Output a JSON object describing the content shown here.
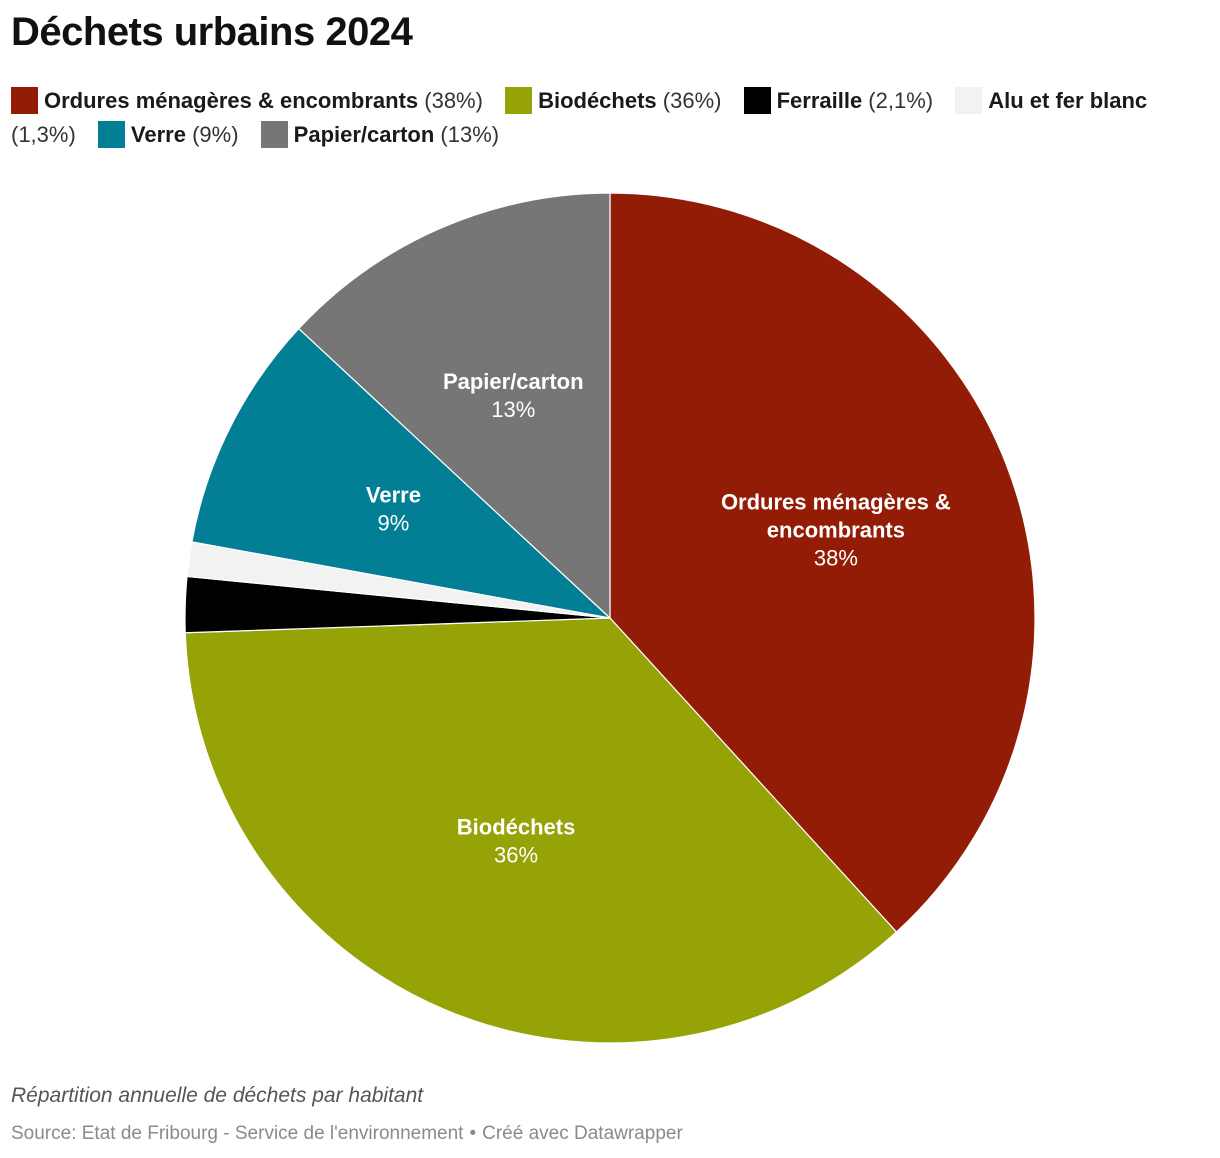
{
  "title": "Déchets urbains 2024",
  "caption": "Répartition annuelle de déchets par habitant",
  "footer": {
    "source": "Source: Etat de Fribourg - Service de l'environnement",
    "separator": "•",
    "credit": "Créé avec Datawrapper"
  },
  "chart_data": {
    "type": "pie",
    "title": "Déchets urbains 2024",
    "legend_position": "top",
    "start_angle_deg": 0,
    "direction": "clockwise",
    "slices": [
      {
        "label": "Ordures ménagères & encombrants",
        "display_value": "38%",
        "legend_value": "(38%)",
        "value": 38.0,
        "color": "#921c06",
        "show_label": true
      },
      {
        "label": "Biodéchets",
        "display_value": "36%",
        "legend_value": "(36%)",
        "value": 36.0,
        "color": "#95a307",
        "show_label": true
      },
      {
        "label": "Ferraille",
        "display_value": "2,1%",
        "legend_value": "(2,1%)",
        "value": 2.1,
        "color": "#000000",
        "show_label": false
      },
      {
        "label": "Alu et fer blanc",
        "display_value": "1,3%",
        "legend_value": "(1,3%)",
        "value": 1.3,
        "color": "#f2f2f2",
        "show_label": false
      },
      {
        "label": "Verre",
        "display_value": "9%",
        "legend_value": "(9%)",
        "value": 9.0,
        "color": "#037f95",
        "show_label": true
      },
      {
        "label": "Papier/carton",
        "display_value": "13%",
        "legend_value": "(13%)",
        "value": 13.0,
        "color": "#767676",
        "show_label": true
      }
    ]
  }
}
